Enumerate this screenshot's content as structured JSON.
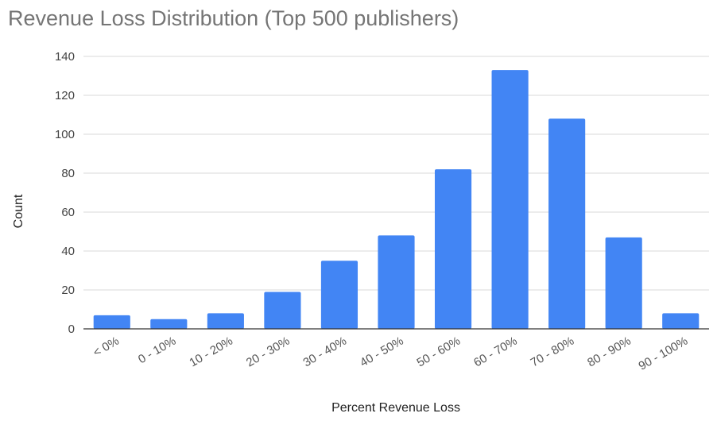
{
  "chart_data": {
    "type": "bar",
    "title": "Revenue Loss Distribution (Top 500 publishers)",
    "xlabel": "Percent Revenue Loss",
    "ylabel": "Count",
    "categories": [
      "< 0%",
      "0 - 10%",
      "10 - 20%",
      "20 - 30%",
      "30 - 40%",
      "40 - 50%",
      "50 - 60%",
      "60 - 70%",
      "70 - 80%",
      "80 - 90%",
      "90 - 100%"
    ],
    "values": [
      7,
      5,
      8,
      19,
      35,
      48,
      82,
      133,
      108,
      47,
      8
    ],
    "ylim": [
      0,
      140
    ],
    "yticks": [
      0,
      20,
      40,
      60,
      80,
      100,
      120,
      140
    ],
    "grid": true,
    "bar_color": "#4285f4"
  }
}
